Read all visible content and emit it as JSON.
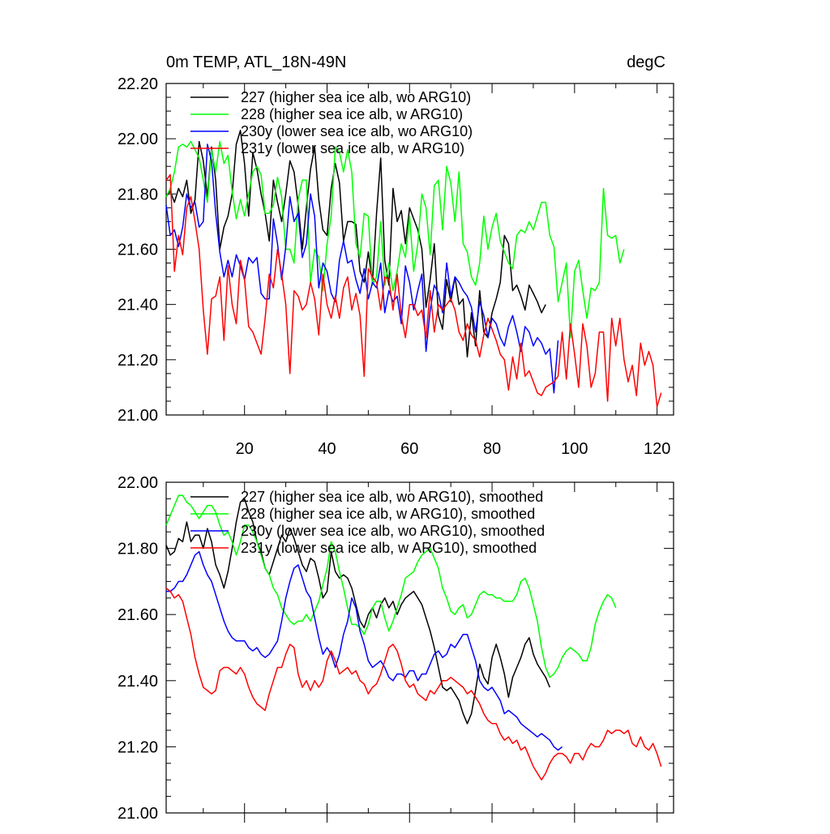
{
  "chart_data": [
    {
      "type": "line",
      "title": "0m TEMP, ATL_18N-49N",
      "units": "degC",
      "xlim": [
        1,
        124
      ],
      "ylim": [
        21.0,
        22.2
      ],
      "yticks": [
        "21.00",
        "21.20",
        "21.40",
        "21.60",
        "21.80",
        "22.00",
        "22.20"
      ],
      "ytick_values": [
        21.0,
        21.2,
        21.4,
        21.6,
        21.8,
        22.0,
        22.2
      ],
      "xticks": [
        "20",
        "40",
        "60",
        "80",
        "100",
        "120"
      ],
      "xtick_values": [
        20,
        40,
        60,
        80,
        100,
        120
      ],
      "legend_position": "top-left",
      "series": [
        {
          "name": "227 (higher sea ice alb, wo ARG10)",
          "color": "#000000",
          "values": [
            21.79,
            21.81,
            21.77,
            21.82,
            21.79,
            21.85,
            21.73,
            21.78,
            21.99,
            21.92,
            21.79,
            21.97,
            21.85,
            21.6,
            21.68,
            21.72,
            21.8,
            21.98,
            22.03,
            21.91,
            21.72,
            21.95,
            21.89,
            21.8,
            21.73,
            21.63,
            21.85,
            21.77,
            21.7,
            21.8,
            21.92,
            21.88,
            21.76,
            21.6,
            21.75,
            21.89,
            21.97,
            21.78,
            21.67,
            21.65,
            21.82,
            21.91,
            21.84,
            21.63,
            21.7,
            21.7,
            21.69,
            21.52,
            21.48,
            21.59,
            21.48,
            21.73,
            21.93,
            21.56,
            21.47,
            21.82,
            21.7,
            21.74,
            21.62,
            21.75,
            21.71,
            21.67,
            21.6,
            21.39,
            21.49,
            21.62,
            21.36,
            21.31,
            21.49,
            21.41,
            21.5,
            21.4,
            21.42,
            21.21,
            21.37,
            21.25,
            21.45,
            21.3,
            21.28,
            21.37,
            21.42,
            21.48,
            21.65,
            21.62,
            21.45,
            21.47,
            21.43,
            21.38,
            21.47,
            21.44,
            21.41,
            21.37,
            21.4
          ]
        },
        {
          "name": "228 (higher sea ice alb, w ARG10)",
          "color": "#00ff00",
          "values": [
            21.79,
            21.82,
            21.88,
            21.97,
            21.98,
            21.97,
            21.99,
            21.96,
            21.93,
            21.85,
            21.77,
            21.96,
            21.88,
            21.99,
            21.91,
            21.94,
            21.81,
            21.71,
            21.78,
            21.72,
            21.8,
            21.88,
            21.9,
            21.87,
            21.73,
            21.73,
            21.76,
            21.86,
            21.79,
            21.6,
            21.6,
            21.55,
            21.78,
            21.85,
            21.85,
            21.48,
            21.6,
            21.57,
            21.45,
            21.62,
            21.72,
            21.97,
            21.95,
            21.88,
            21.96,
            21.88,
            21.62,
            21.57,
            21.73,
            21.72,
            21.47,
            21.5,
            21.7,
            21.47,
            21.55,
            21.45,
            21.52,
            21.62,
            21.57,
            21.72,
            21.52,
            21.62,
            21.8,
            21.75,
            21.58,
            21.83,
            21.85,
            21.67,
            21.9,
            21.84,
            21.7,
            21.88,
            21.62,
            21.59,
            21.5,
            21.47,
            21.55,
            21.72,
            21.6,
            21.68,
            21.73,
            21.63,
            21.59,
            21.55,
            21.53,
            21.65,
            21.67,
            21.66,
            21.7,
            21.67,
            21.72,
            21.77,
            21.77,
            21.65,
            21.61,
            21.41,
            21.48,
            21.55,
            21.28,
            21.52,
            21.56,
            21.45,
            21.35,
            21.46,
            21.45,
            21.48,
            21.82,
            21.65,
            21.64,
            21.65,
            21.55,
            21.6
          ]
        },
        {
          "name": "230y (lower sea ice alb, wo ARG10)",
          "color": "#0000ff",
          "values": [
            21.76,
            21.65,
            21.67,
            21.61,
            21.68,
            21.8,
            21.75,
            21.77,
            21.68,
            21.7,
            21.98,
            21.92,
            21.73,
            21.59,
            21.5,
            21.56,
            21.5,
            21.58,
            21.54,
            21.49,
            21.57,
            21.55,
            21.57,
            21.44,
            21.42,
            21.42,
            21.71,
            21.62,
            21.49,
            21.61,
            21.79,
            21.7,
            21.73,
            21.57,
            21.62,
            21.8,
            21.72,
            21.46,
            21.55,
            21.52,
            21.44,
            21.41,
            21.56,
            21.63,
            21.55,
            21.56,
            21.49,
            21.44,
            21.53,
            21.42,
            21.48,
            21.46,
            21.55,
            21.37,
            21.45,
            21.41,
            21.43,
            21.33,
            21.54,
            21.48,
            21.38,
            21.45,
            21.51,
            21.23,
            21.38,
            21.47,
            21.44,
            21.37,
            21.55,
            21.43,
            21.5,
            21.48,
            21.45,
            21.43,
            21.39,
            21.3,
            21.41,
            21.36,
            21.28,
            21.35,
            21.33,
            21.28,
            21.25,
            21.32,
            21.36,
            21.3,
            21.23,
            21.32,
            21.3,
            21.25,
            21.28,
            21.26,
            21.22,
            21.24,
            21.08,
            21.27
          ]
        },
        {
          "name": "231y (lower sea ice alb, w ARG10)",
          "color": "#ff0000",
          "values": [
            21.85,
            21.87,
            21.52,
            21.65,
            21.58,
            21.75,
            21.79,
            21.7,
            21.6,
            21.38,
            21.22,
            21.42,
            21.43,
            21.5,
            21.27,
            21.54,
            21.4,
            21.33,
            21.56,
            21.49,
            21.32,
            21.3,
            21.26,
            21.22,
            21.35,
            21.51,
            21.46,
            21.6,
            21.51,
            21.4,
            21.15,
            21.45,
            21.43,
            21.38,
            21.4,
            21.48,
            21.42,
            21.29,
            21.51,
            21.4,
            21.35,
            21.43,
            21.35,
            21.46,
            21.5,
            21.38,
            21.44,
            21.36,
            21.14,
            21.53,
            21.5,
            21.48,
            21.38,
            21.5,
            21.49,
            21.38,
            21.51,
            21.36,
            21.28,
            21.4,
            21.4,
            21.36,
            21.38,
            21.28,
            21.45,
            21.3,
            21.4,
            21.38,
            21.4,
            21.42,
            21.38,
            21.3,
            21.27,
            21.33,
            21.29,
            21.27,
            21.21,
            21.29,
            21.35,
            21.31,
            21.27,
            21.22,
            21.2,
            21.09,
            21.21,
            21.13,
            21.26,
            21.14,
            21.16,
            21.12,
            21.08,
            21.07,
            21.1,
            21.11,
            21.12,
            21.14,
            21.3,
            21.13,
            21.33,
            21.22,
            21.1,
            21.33,
            21.25,
            21.1,
            21.15,
            21.3,
            21.3,
            21.05,
            21.35,
            21.25,
            21.35,
            21.2,
            21.12,
            21.18,
            21.07,
            21.26,
            21.18,
            21.23,
            21.18,
            21.03,
            21.08
          ]
        }
      ]
    },
    {
      "type": "line",
      "title": "",
      "units": "",
      "xlim": [
        1,
        124
      ],
      "ylim": [
        21.0,
        22.0
      ],
      "yticks": [
        "21.00",
        "21.20",
        "21.40",
        "21.60",
        "21.80",
        "22.00"
      ],
      "ytick_values": [
        21.0,
        21.2,
        21.4,
        21.6,
        21.8,
        22.0
      ],
      "xticks": [],
      "xtick_values": [
        20,
        40,
        60,
        80,
        100,
        120
      ],
      "legend_position": "top-left",
      "series": [
        {
          "name": "227 (higher sea ice alb, wo ARG10), smoothed",
          "color": "#000000",
          "values": [
            21.81,
            21.78,
            21.79,
            21.83,
            21.82,
            21.88,
            21.82,
            21.84,
            21.84,
            21.8,
            21.86,
            21.82,
            21.75,
            21.72,
            21.68,
            21.73,
            21.8,
            21.88,
            21.94,
            21.95,
            21.91,
            21.88,
            21.82,
            21.79,
            21.74,
            21.72,
            21.76,
            21.8,
            21.84,
            21.82,
            21.86,
            21.83,
            21.79,
            21.75,
            21.73,
            21.77,
            21.76,
            21.71,
            21.65,
            21.67,
            21.79,
            21.73,
            21.71,
            21.72,
            21.71,
            21.68,
            21.63,
            21.58,
            21.56,
            21.6,
            21.62,
            21.59,
            21.63,
            21.65,
            21.62,
            21.64,
            21.6,
            21.63,
            21.65,
            21.66,
            21.67,
            21.65,
            21.63,
            21.59,
            21.55,
            21.5,
            21.44,
            21.38,
            21.37,
            21.38,
            21.36,
            21.34,
            21.3,
            21.27,
            21.3,
            21.37,
            21.45,
            21.41,
            21.39,
            21.47,
            21.51,
            21.47,
            21.42,
            21.35,
            21.41,
            21.44,
            21.47,
            21.51,
            21.53,
            21.48,
            21.45,
            21.43,
            21.41,
            21.38
          ]
        },
        {
          "name": "228 (higher sea ice alb, w ARG10), smoothed",
          "color": "#00ff00",
          "values": [
            21.87,
            21.9,
            21.93,
            21.96,
            21.96,
            21.94,
            21.93,
            21.91,
            21.89,
            21.91,
            21.93,
            21.93,
            21.91,
            21.87,
            21.84,
            21.85,
            21.82,
            21.78,
            21.82,
            21.87,
            21.87,
            21.85,
            21.82,
            21.78,
            21.74,
            21.72,
            21.68,
            21.66,
            21.62,
            21.6,
            21.58,
            21.57,
            21.58,
            21.58,
            21.6,
            21.58,
            21.61,
            21.64,
            21.69,
            21.74,
            21.82,
            21.79,
            21.73,
            21.68,
            21.62,
            21.57,
            21.57,
            21.56,
            21.54,
            21.57,
            21.62,
            21.64,
            21.64,
            21.59,
            21.55,
            21.58,
            21.62,
            21.66,
            21.71,
            21.72,
            21.73,
            21.76,
            21.78,
            21.79,
            21.8,
            21.77,
            21.74,
            21.68,
            21.65,
            21.61,
            21.6,
            21.62,
            21.63,
            21.59,
            21.6,
            21.63,
            21.66,
            21.67,
            21.66,
            21.66,
            21.65,
            21.65,
            21.64,
            21.64,
            21.64,
            21.66,
            21.7,
            21.71,
            21.68,
            21.63,
            21.58,
            21.5,
            21.44,
            21.41,
            21.42,
            21.44,
            21.47,
            21.49,
            21.5,
            21.49,
            21.48,
            21.46,
            21.46,
            21.5,
            21.57,
            21.61,
            21.64,
            21.66,
            21.65,
            21.62
          ]
        },
        {
          "name": "230y (lower sea ice alb, wo ARG10), smoothed",
          "color": "#0000ff",
          "values": [
            21.67,
            21.67,
            21.68,
            21.7,
            21.7,
            21.72,
            21.75,
            21.78,
            21.79,
            21.75,
            21.72,
            21.7,
            21.66,
            21.62,
            21.58,
            21.55,
            21.53,
            21.52,
            21.52,
            21.52,
            21.5,
            21.49,
            21.5,
            21.48,
            21.47,
            21.48,
            21.5,
            21.52,
            21.58,
            21.65,
            21.7,
            21.74,
            21.75,
            21.71,
            21.67,
            21.65,
            21.59,
            21.53,
            21.48,
            21.5,
            21.48,
            21.44,
            21.48,
            21.54,
            21.58,
            21.65,
            21.62,
            21.55,
            21.51,
            21.46,
            21.44,
            21.45,
            21.46,
            21.44,
            21.41,
            21.4,
            21.42,
            21.42,
            21.41,
            21.43,
            21.43,
            21.4,
            21.42,
            21.42,
            21.45,
            21.48,
            21.49,
            21.47,
            21.48,
            21.51,
            21.5,
            21.52,
            21.54,
            21.54,
            21.5,
            21.46,
            21.4,
            21.38,
            21.37,
            21.38,
            21.36,
            21.34,
            21.3,
            21.31,
            21.3,
            21.29,
            21.27,
            21.26,
            21.25,
            21.24,
            21.23,
            21.24,
            21.23,
            21.22,
            21.2,
            21.19,
            21.2
          ]
        },
        {
          "name": "231y (lower sea ice alb, w ARG10), smoothed",
          "color": "#ff0000",
          "values": [
            21.68,
            21.67,
            21.65,
            21.66,
            21.64,
            21.59,
            21.54,
            21.47,
            21.42,
            21.38,
            21.37,
            21.36,
            21.37,
            21.43,
            21.44,
            21.44,
            21.43,
            21.42,
            21.44,
            21.42,
            21.38,
            21.35,
            21.33,
            21.32,
            21.31,
            21.36,
            21.4,
            21.44,
            21.44,
            21.48,
            21.51,
            21.5,
            21.42,
            21.38,
            21.4,
            21.37,
            21.4,
            21.38,
            21.4,
            21.46,
            21.49,
            21.46,
            21.42,
            21.43,
            21.44,
            21.42,
            21.43,
            21.4,
            21.39,
            21.36,
            21.38,
            21.39,
            21.42,
            21.46,
            21.5,
            21.51,
            21.49,
            21.45,
            21.4,
            21.38,
            21.39,
            21.36,
            21.35,
            21.34,
            21.37,
            21.36,
            21.38,
            21.4,
            21.4,
            21.41,
            21.4,
            21.39,
            21.38,
            21.36,
            21.37,
            21.35,
            21.33,
            21.3,
            21.28,
            21.27,
            21.27,
            21.24,
            21.22,
            21.23,
            21.21,
            21.22,
            21.19,
            21.2,
            21.17,
            21.14,
            21.12,
            21.1,
            21.12,
            21.15,
            21.17,
            21.18,
            21.18,
            21.17,
            21.15,
            21.18,
            21.18,
            21.16,
            21.19,
            21.21,
            21.2,
            21.2,
            21.22,
            21.25,
            21.24,
            21.25,
            21.25,
            21.24,
            21.25,
            21.21,
            21.2,
            21.23,
            21.2,
            21.19,
            21.21,
            21.18,
            21.14
          ]
        }
      ]
    }
  ]
}
